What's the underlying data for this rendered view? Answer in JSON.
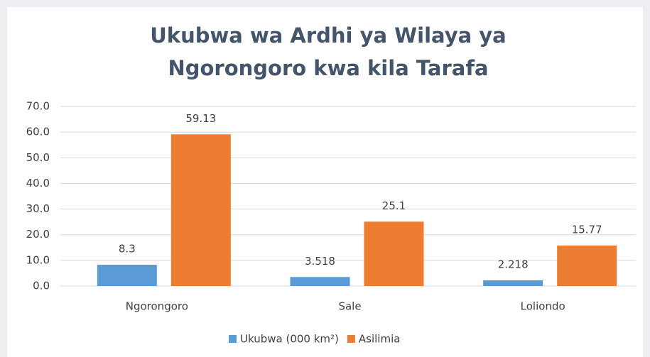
{
  "chart_data": {
    "type": "bar",
    "title": [
      "Ukubwa wa Ardhi ya Wilaya ya",
      "Ngorongoro kwa kila Tarafa"
    ],
    "categories": [
      "Ngorongoro",
      "Sale",
      "Loliondo"
    ],
    "series": [
      {
        "name": "Ukubwa (000 km²)",
        "color": "#5b9bd5",
        "values": [
          8.3,
          3.518,
          2.218
        ]
      },
      {
        "name": "Asilimia",
        "color": "#ed7d31",
        "values": [
          59.13,
          25.1,
          15.77
        ]
      }
    ],
    "ylim": [
      0,
      70
    ],
    "yticks": [
      {
        "value": 0,
        "label": "0.0"
      },
      {
        "value": 10,
        "label": "10.0"
      },
      {
        "value": 20,
        "label": "20.0"
      },
      {
        "value": 30,
        "label": "30.0"
      },
      {
        "value": 40,
        "label": "40.0"
      },
      {
        "value": 50,
        "label": "50.0"
      },
      {
        "value": 60,
        "label": "60.0"
      },
      {
        "value": 70,
        "label": "70.0"
      }
    ],
    "grid": true,
    "legend": "bottom"
  }
}
